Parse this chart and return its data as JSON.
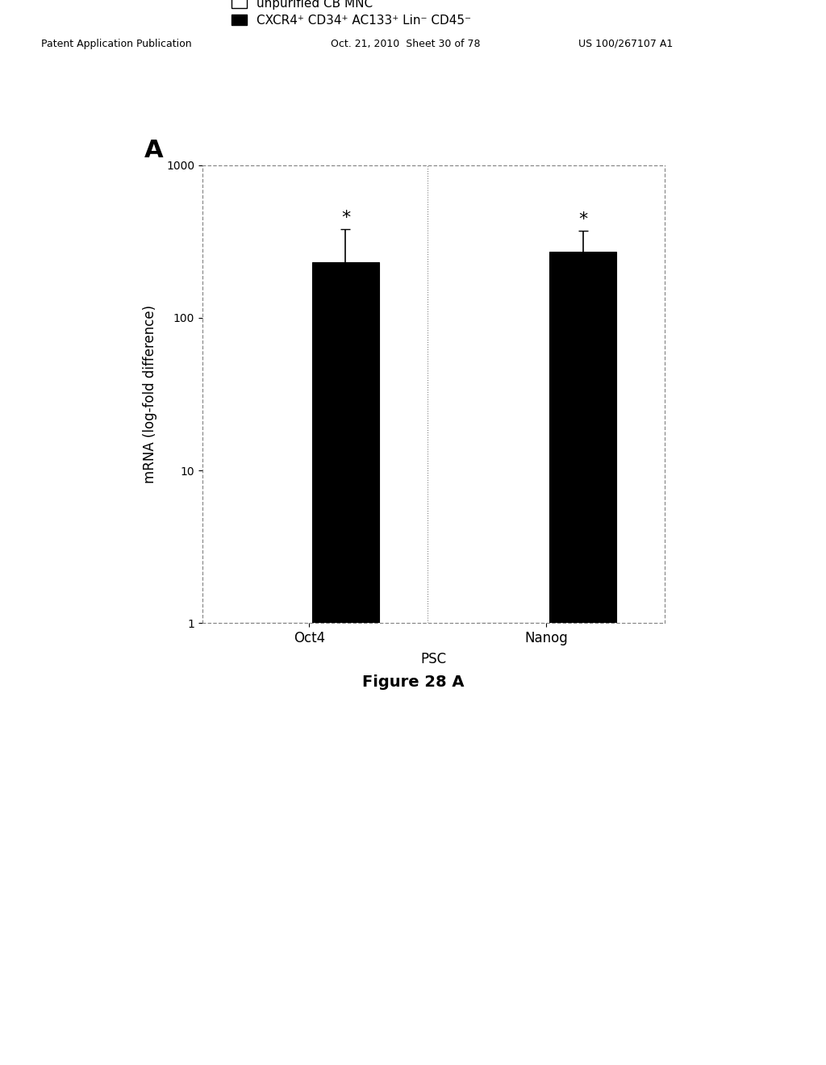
{
  "title_panel": "A",
  "legend_entries": [
    {
      "label": "unpurified CB MNC",
      "color": "white",
      "edgecolor": "black"
    },
    {
      "label": "CXCR4⁺ CD34⁺ AC133⁺ Lin⁻ CD45⁻",
      "color": "black",
      "edgecolor": "black"
    }
  ],
  "groups": [
    "Oct4",
    "Nanog"
  ],
  "group_label": "PSC",
  "bar_data": [
    {
      "group": "Oct4",
      "unpurified_value": 1.0,
      "purified_value": 230,
      "purified_error_up": 150,
      "purified_error_down": 80
    },
    {
      "group": "Nanog",
      "unpurified_value": 1.0,
      "purified_value": 270,
      "purified_error_up": 100,
      "purified_error_down": 60
    }
  ],
  "ylabel": "mRNA (log-fold difference)",
  "ylim_log": [
    1,
    1000
  ],
  "yticks": [
    1,
    10,
    100,
    1000
  ],
  "figure_label": "Figure 28 A",
  "background_color": "#ffffff",
  "bar_width": 0.28,
  "header_left": "Patent Application Publication",
  "header_mid": "Oct. 21, 2010  Sheet 30 of 78",
  "header_right": "US 100/267107 A1"
}
